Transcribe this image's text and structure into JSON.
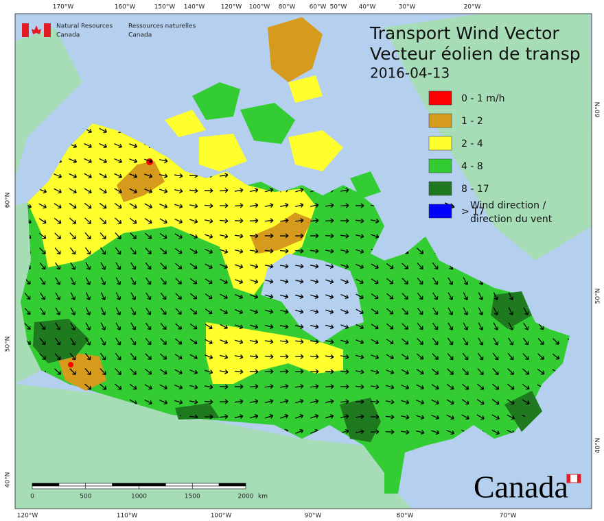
{
  "agency": {
    "en_line1": "Natural Resources",
    "en_line2": "Canada",
    "fr_line1": "Ressources naturelles",
    "fr_line2": "Canada"
  },
  "title": {
    "line1": "Transport Wind Vector",
    "line2": "Vecteur éolien de transp",
    "date": "2016-04-13"
  },
  "legend": {
    "items": [
      {
        "label": "0 - 1 m/h",
        "color": "#ff0000"
      },
      {
        "label": "1 - 2",
        "color": "#d69a1c"
      },
      {
        "label": "2 - 4",
        "color": "#ffff2e"
      },
      {
        "label": "4 - 8",
        "color": "#33cc33"
      },
      {
        "label": "8 - 17",
        "color": "#1f7a1f"
      },
      {
        "label": "> 17",
        "color": "#0000ff"
      }
    ],
    "arrow_line1": "Wind direction /",
    "arrow_line2": "direction du vent"
  },
  "graticule": {
    "top": [
      "170°W",
      "160°W",
      "150°W",
      "140°W",
      "120°W",
      "100°W",
      "80°W",
      "60°W",
      "50°W",
      "40°W",
      "30°W",
      "20°W"
    ],
    "bottom": [
      "120°W",
      "110°W",
      "100°W",
      "90°W",
      "80°W",
      "70°W"
    ],
    "left": [
      "60°N",
      "50°N",
      "40°N"
    ],
    "right": [
      "60°N",
      "50°N",
      "40°N"
    ]
  },
  "scale_bar": {
    "labels": [
      0,
      500,
      1000,
      1500,
      2000
    ],
    "unit": "km"
  },
  "wordmark": "Canada"
}
